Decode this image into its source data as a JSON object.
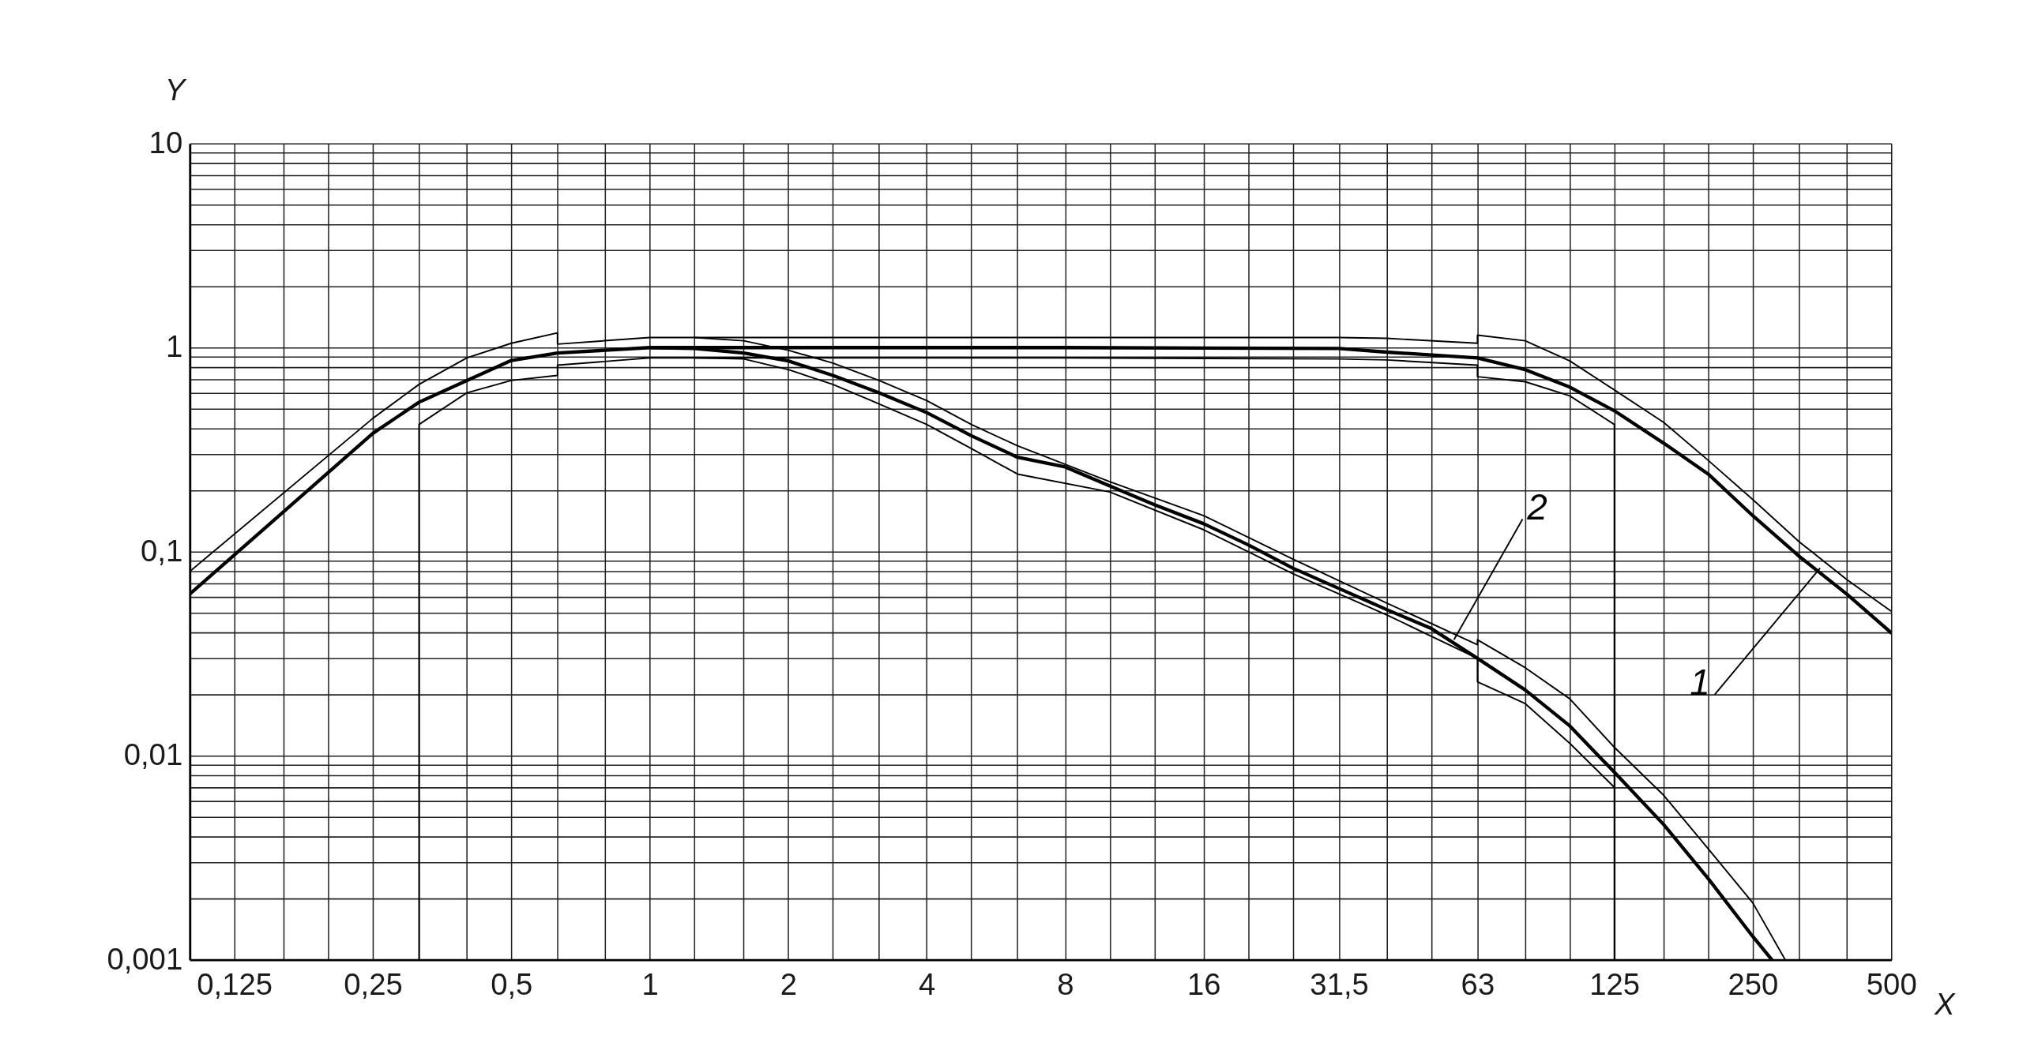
{
  "chart_data": {
    "type": "line",
    "xlabel": "X",
    "ylabel": "Y",
    "log": "xy",
    "grid": true,
    "xlim": [
      0.1,
      500
    ],
    "ylim": [
      0.001,
      10
    ],
    "xticks": [
      {
        "value": 0.125,
        "label": "0,125"
      },
      {
        "value": 0.16,
        "label": null
      },
      {
        "value": 0.2,
        "label": null
      },
      {
        "value": 0.25,
        "label": "0,25"
      },
      {
        "value": 0.315,
        "label": null
      },
      {
        "value": 0.4,
        "label": null
      },
      {
        "value": 0.5,
        "label": "0,5"
      },
      {
        "value": 0.63,
        "label": null
      },
      {
        "value": 0.8,
        "label": null
      },
      1,
      {
        "value": 1.25,
        "label": null
      },
      {
        "value": 1.6,
        "label": null
      },
      2,
      {
        "value": 2.5,
        "label": null
      },
      {
        "value": 3.15,
        "label": null
      },
      4,
      {
        "value": 5,
        "label": null
      },
      {
        "value": 6.3,
        "label": null
      },
      8,
      {
        "value": 10,
        "label": null
      },
      {
        "value": 12.5,
        "label": null
      },
      16,
      {
        "value": 20,
        "label": null
      },
      {
        "value": 25,
        "label": null
      },
      {
        "value": 31.5,
        "label": "31,5"
      },
      {
        "value": 40,
        "label": null
      },
      {
        "value": 50,
        "label": null
      },
      63,
      {
        "value": 80,
        "label": null
      },
      {
        "value": 100,
        "label": null
      },
      125,
      {
        "value": 160,
        "label": null
      },
      {
        "value": 200,
        "label": null
      },
      250,
      {
        "value": 315,
        "label": null
      },
      {
        "value": 400,
        "label": null
      },
      500
    ],
    "yticks": [
      {
        "value": 0.001,
        "label": "0,001"
      },
      {
        "value": 0.002,
        "label": null
      },
      {
        "value": 0.003,
        "label": null
      },
      {
        "value": 0.004,
        "label": null
      },
      {
        "value": 0.005,
        "label": null
      },
      {
        "value": 0.006,
        "label": null
      },
      {
        "value": 0.007,
        "label": null
      },
      {
        "value": 0.008,
        "label": null
      },
      {
        "value": 0.009,
        "label": null
      },
      {
        "value": 0.01,
        "label": "0,01"
      },
      {
        "value": 0.02,
        "label": null
      },
      {
        "value": 0.03,
        "label": null
      },
      {
        "value": 0.04,
        "label": null
      },
      {
        "value": 0.05,
        "label": null
      },
      {
        "value": 0.06,
        "label": null
      },
      {
        "value": 0.07,
        "label": null
      },
      {
        "value": 0.08,
        "label": null
      },
      {
        "value": 0.09,
        "label": null
      },
      {
        "value": 0.1,
        "label": "0,1"
      },
      {
        "value": 0.2,
        "label": null
      },
      {
        "value": 0.3,
        "label": null
      },
      {
        "value": 0.4,
        "label": null
      },
      {
        "value": 0.5,
        "label": null
      },
      {
        "value": 0.6,
        "label": null
      },
      {
        "value": 0.7,
        "label": null
      },
      {
        "value": 0.8,
        "label": null
      },
      {
        "value": 0.9,
        "label": null
      },
      1,
      {
        "value": 2,
        "label": null
      },
      {
        "value": 3,
        "label": null
      },
      {
        "value": 4,
        "label": null
      },
      {
        "value": 5,
        "label": null
      },
      {
        "value": 6,
        "label": null
      },
      {
        "value": 7,
        "label": null
      },
      {
        "value": 8,
        "label": null
      },
      {
        "value": 9,
        "label": null
      },
      10
    ],
    "series": [
      {
        "color": "#000000",
        "x": [
          0.1,
          0.25,
          0.315,
          0.5,
          0.63,
          1,
          2,
          8,
          31.5,
          40,
          63,
          80,
          100,
          125,
          160,
          200,
          250,
          315,
          400,
          500
        ],
        "values": [
          0.062,
          0.38,
          0.54,
          0.865,
          0.94,
          1.0,
          1.0,
          1.0,
          0.99,
          0.95,
          0.89,
          0.78,
          0.64,
          0.49,
          0.34,
          0.24,
          0.15,
          0.095,
          0.062,
          0.04
        ]
      },
      {
        "color": "#000000",
        "x": [
          1,
          1.25,
          1.6,
          2,
          2.5,
          3.15,
          4,
          5,
          6.3,
          8,
          10,
          12.5,
          16,
          20,
          25,
          31.5,
          40,
          50,
          63,
          80,
          100,
          125,
          160,
          200,
          250,
          275
        ],
        "values": [
          1.0,
          0.99,
          0.94,
          0.86,
          0.73,
          0.6,
          0.48,
          0.37,
          0.29,
          0.26,
          0.21,
          0.17,
          0.137,
          0.108,
          0.083,
          0.066,
          0.052,
          0.042,
          0.03,
          0.021,
          0.014,
          0.0083,
          0.0046,
          0.0025,
          0.0013,
          0.001
        ]
      },
      {
        "color": "#000000",
        "x": [
          0.1,
          0.25,
          0.315,
          0.4,
          0.5,
          0.63,
          0.63,
          1,
          2,
          8,
          31.5,
          40,
          63,
          63,
          80,
          100,
          125,
          160,
          200,
          250,
          315,
          400,
          500
        ],
        "values": [
          0.08,
          0.45,
          0.66,
          0.89,
          1.05,
          1.18,
          1.04,
          1.12,
          1.12,
          1.12,
          1.12,
          1.11,
          1.05,
          1.15,
          1.08,
          0.86,
          0.62,
          0.43,
          0.28,
          0.18,
          0.112,
          0.073,
          0.051
        ]
      },
      {
        "color": "#000000",
        "x": [
          0.315,
          0.315,
          0.4,
          0.5,
          0.63,
          0.63,
          1,
          2,
          8,
          31.5,
          40,
          63,
          63,
          80,
          100,
          125,
          125
        ],
        "values": [
          0.001,
          0.42,
          0.6,
          0.69,
          0.73,
          0.82,
          0.89,
          0.89,
          0.89,
          0.88,
          0.87,
          0.82,
          0.72,
          0.68,
          0.58,
          0.42,
          0.001
        ]
      },
      {
        "color": "#000000",
        "x": [
          1.25,
          1.6,
          2,
          2.5,
          3.15,
          4,
          5,
          6.3,
          10,
          16,
          25,
          40,
          63,
          63,
          80,
          100,
          125,
          160,
          200,
          250,
          294
        ],
        "values": [
          1.12,
          1.08,
          0.97,
          0.84,
          0.69,
          0.55,
          0.42,
          0.33,
          0.22,
          0.15,
          0.092,
          0.056,
          0.035,
          0.037,
          0.027,
          0.019,
          0.011,
          0.0064,
          0.0035,
          0.0019,
          0.001
        ]
      },
      {
        "color": "#000000",
        "x": [
          1.25,
          1.6,
          2,
          2.5,
          3.15,
          4,
          5,
          6.3,
          10,
          16,
          25,
          40,
          63,
          63,
          80,
          100,
          125
        ],
        "values": [
          0.89,
          0.88,
          0.78,
          0.66,
          0.53,
          0.42,
          0.32,
          0.24,
          0.196,
          0.128,
          0.078,
          0.049,
          0.03,
          0.023,
          0.018,
          0.0115,
          0.007
        ]
      }
    ],
    "annotations": [
      {
        "text": "1",
        "x": 350,
        "y": 0.083
      },
      {
        "text": "2",
        "x": 56,
        "y": 0.037
      }
    ]
  }
}
